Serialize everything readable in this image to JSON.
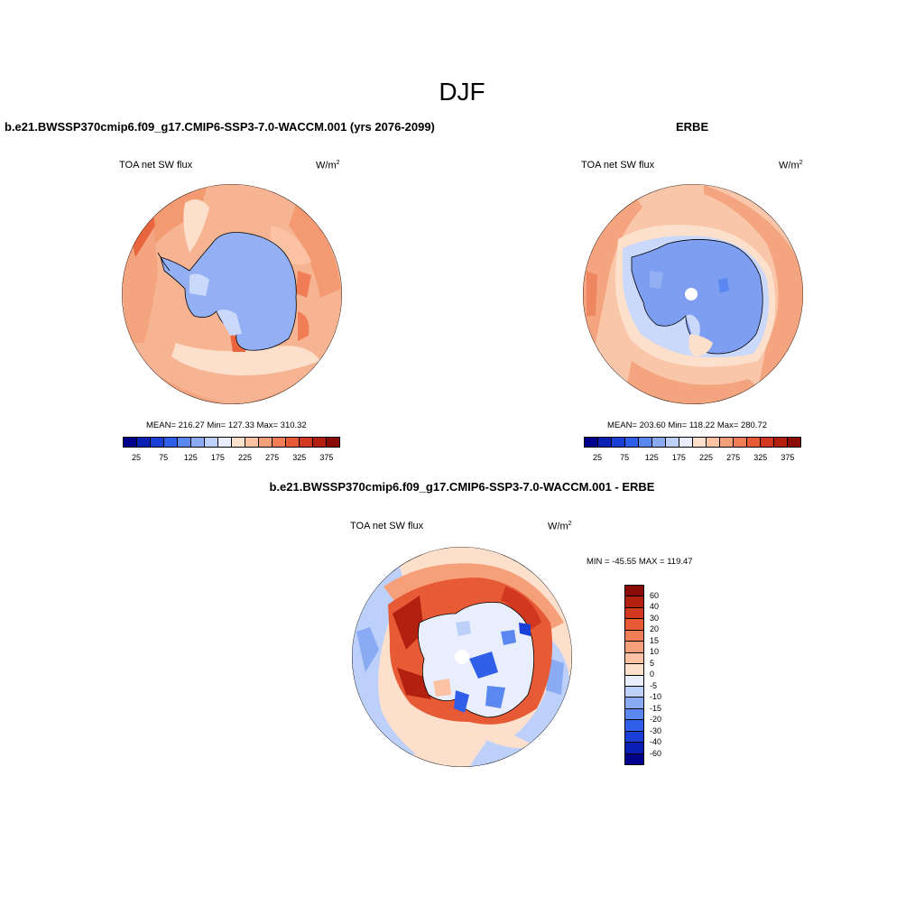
{
  "title": "DJF",
  "panels": [
    {
      "title": "b.e21.BWSSP370cmip6.f09_g17.CMIP6-SSP3-7.0-WACCM.001 (yrs 2076-2099)",
      "left_label": "TOA net SW flux",
      "units": "W/m",
      "units_sup": "2",
      "stats": "MEAN= 216.27  Min= 127.33  Max= 310.32",
      "colorbar_labels": [
        "25",
        "75",
        "125",
        "175",
        "225",
        "275",
        "325",
        "375"
      ]
    },
    {
      "title": "ERBE",
      "left_label": "TOA net SW flux",
      "units": "W/m",
      "units_sup": "2",
      "stats": "MEAN= 203.60  Min= 118.22  Max= 280.72",
      "colorbar_labels": [
        "25",
        "75",
        "125",
        "175",
        "225",
        "275",
        "325",
        "375"
      ]
    },
    {
      "title": "b.e21.BWSSP370cmip6.f09_g17.CMIP6-SSP3-7.0-WACCM.001 - ERBE",
      "left_label": "TOA net SW flux",
      "units": "W/m",
      "units_sup": "2",
      "stats": "MIN = -45.55 MAX = 119.47",
      "colorbar_labels": [
        "60",
        "40",
        "30",
        "20",
        "15",
        "10",
        "5",
        "0",
        "-5",
        "-10",
        "-15",
        "-20",
        "-30",
        "-40",
        "-60"
      ]
    }
  ],
  "colors": {
    "abs_scale": [
      "#00008b",
      "#0a1fb4",
      "#1a3fd6",
      "#2f5ee8",
      "#5a87f0",
      "#8aaaf3",
      "#bcd0fa",
      "#e8eefb",
      "#fde0cc",
      "#fbc3a3",
      "#f6a07a",
      "#f07d55",
      "#e65a35",
      "#d2381f",
      "#b4200f",
      "#8a0a05"
    ],
    "diff_scale": [
      "#8a0a05",
      "#b4200f",
      "#d2381f",
      "#e65a35",
      "#f07d55",
      "#f6a07a",
      "#fbc3a3",
      "#fde0cc",
      "#e8eefb",
      "#bcd0fa",
      "#8aaaf3",
      "#5a87f0",
      "#2f5ee8",
      "#1a3fd6",
      "#0a1fb4",
      "#00008b"
    ]
  }
}
